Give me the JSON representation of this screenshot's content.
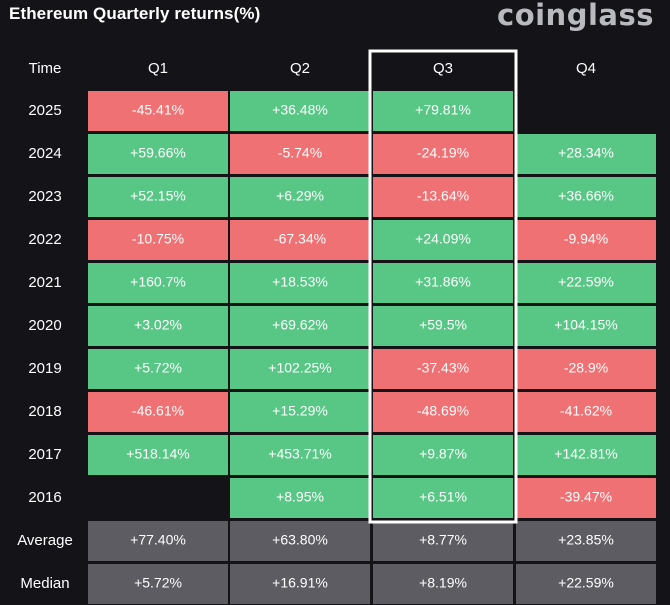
{
  "header": {
    "title": "Ethereum Quarterly returns(%)",
    "logo": "coinglass"
  },
  "colors": {
    "background": "#131318",
    "positive": "#58c785",
    "negative": "#f07173",
    "summary": "#5c5c62",
    "highlight_border": "#ffffff"
  },
  "chart_data": {
    "type": "table",
    "title": "Ethereum Quarterly returns(%)",
    "corner_label": "Time",
    "columns": [
      "Q1",
      "Q2",
      "Q3",
      "Q4"
    ],
    "highlighted_column": "Q3",
    "rows": [
      {
        "label": "2025",
        "values": [
          "-45.41%",
          "+36.48%",
          "+79.81%",
          ""
        ]
      },
      {
        "label": "2024",
        "values": [
          "+59.66%",
          "-5.74%",
          "-24.19%",
          "+28.34%"
        ]
      },
      {
        "label": "2023",
        "values": [
          "+52.15%",
          "+6.29%",
          "-13.64%",
          "+36.66%"
        ]
      },
      {
        "label": "2022",
        "values": [
          "-10.75%",
          "-67.34%",
          "+24.09%",
          "-9.94%"
        ]
      },
      {
        "label": "2021",
        "values": [
          "+160.7%",
          "+18.53%",
          "+31.86%",
          "+22.59%"
        ]
      },
      {
        "label": "2020",
        "values": [
          "+3.02%",
          "+69.62%",
          "+59.5%",
          "+104.15%"
        ]
      },
      {
        "label": "2019",
        "values": [
          "+5.72%",
          "+102.25%",
          "-37.43%",
          "-28.9%"
        ]
      },
      {
        "label": "2018",
        "values": [
          "-46.61%",
          "+15.29%",
          "-48.69%",
          "-41.62%"
        ]
      },
      {
        "label": "2017",
        "values": [
          "+518.14%",
          "+453.71%",
          "+9.87%",
          "+142.81%"
        ]
      },
      {
        "label": "2016",
        "values": [
          "",
          "+8.95%",
          "+6.51%",
          "-39.47%"
        ]
      }
    ],
    "summary_rows": [
      {
        "label": "Average",
        "values": [
          "+77.40%",
          "+63.80%",
          "+8.77%",
          "+23.85%"
        ]
      },
      {
        "label": "Median",
        "values": [
          "+5.72%",
          "+16.91%",
          "+8.19%",
          "+22.59%"
        ]
      }
    ]
  }
}
